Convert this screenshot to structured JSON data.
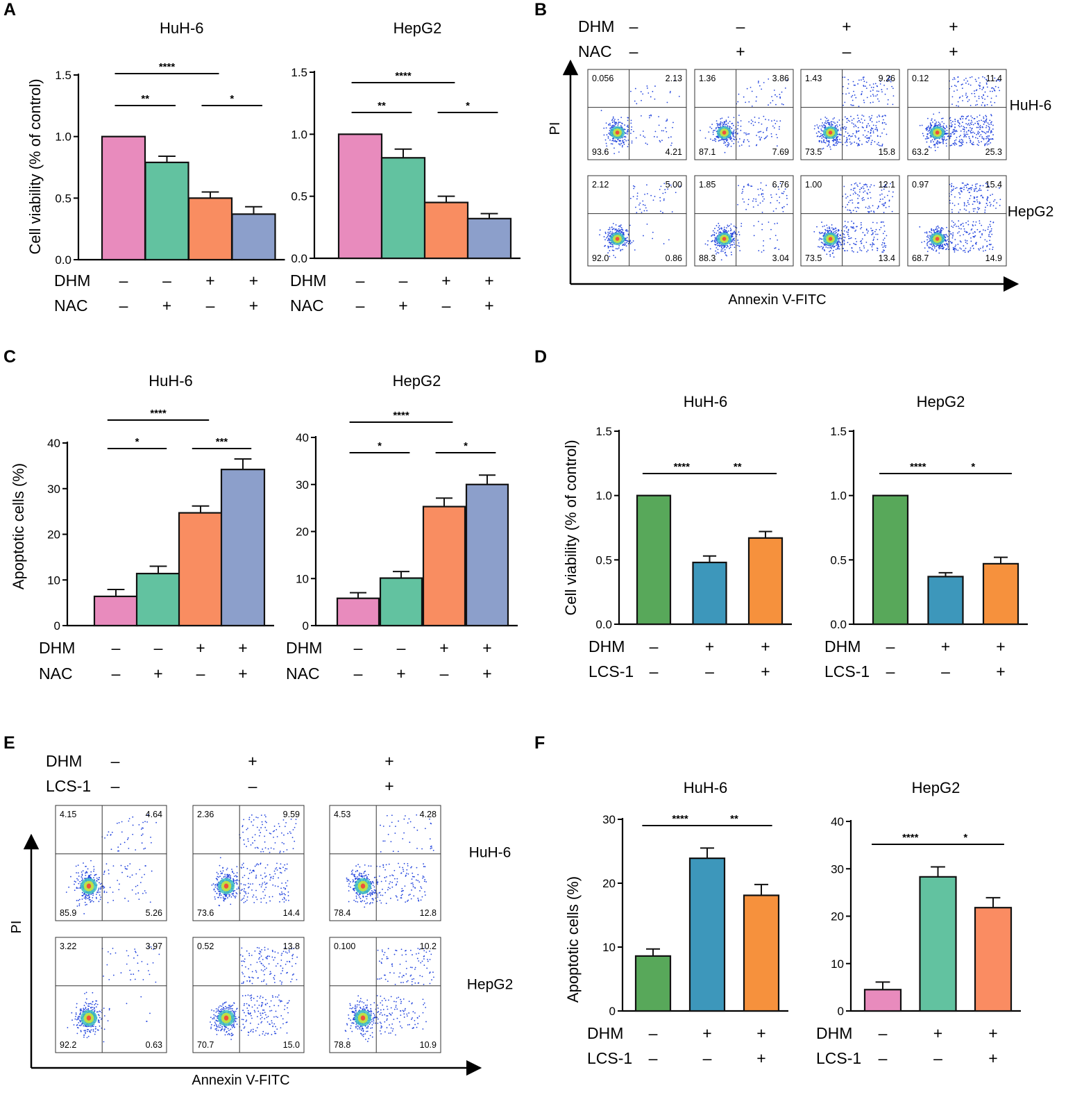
{
  "colors": {
    "pink": "#e88bbd",
    "teal": "#62c2a0",
    "orange": "#f98d61",
    "lavender": "#8c9fcb",
    "green": "#58a85a",
    "blue": "#3d97bb",
    "amber": "#f6913d",
    "salmon": "#fa8c62"
  },
  "panels": {
    "A": "A",
    "B": "B",
    "C": "C",
    "D": "D",
    "E": "E",
    "F": "F"
  },
  "chart_data": [
    {
      "id": "A-HuH6",
      "panel": "A",
      "type": "bar",
      "title": "HuH-6",
      "ylabel": "Cell viability (% of control)",
      "ylim": [
        0,
        1.5
      ],
      "yticks": [
        "0.0",
        "0.5",
        "1.0",
        "1.5"
      ],
      "ytick_values": [
        0,
        0.5,
        1.0,
        1.5
      ],
      "values": [
        1.0,
        0.79,
        0.5,
        0.37
      ],
      "errors": [
        0,
        0.05,
        0.05,
        0.06
      ],
      "colors": [
        "pink",
        "teal",
        "orange",
        "lavender"
      ],
      "conditions": [
        {
          "name": "DHM",
          "signs": [
            "–",
            "–",
            "+",
            "+"
          ]
        },
        {
          "name": "NAC",
          "signs": [
            "–",
            "+",
            "–",
            "+"
          ]
        }
      ],
      "significance": [
        {
          "from": 0,
          "to": 2,
          "label": "****"
        },
        {
          "from": 0,
          "to": 1,
          "label": "**"
        },
        {
          "from": 2,
          "to": 3,
          "label": "*"
        }
      ]
    },
    {
      "id": "A-HepG2",
      "panel": "A",
      "type": "bar",
      "title": "HepG2",
      "ylabel": "",
      "ylim": [
        0,
        1.5
      ],
      "yticks": [
        "0.0",
        "0.5",
        "1.0",
        "1.5"
      ],
      "ytick_values": [
        0,
        0.5,
        1.0,
        1.5
      ],
      "values": [
        1.0,
        0.81,
        0.45,
        0.32
      ],
      "errors": [
        0,
        0.07,
        0.05,
        0.04
      ],
      "colors": [
        "pink",
        "teal",
        "orange",
        "lavender"
      ],
      "conditions": [
        {
          "name": "DHM",
          "signs": [
            "–",
            "–",
            "+",
            "+"
          ]
        },
        {
          "name": "NAC",
          "signs": [
            "–",
            "+",
            "–",
            "+"
          ]
        }
      ],
      "significance": [
        {
          "from": 0,
          "to": 2,
          "label": "****"
        },
        {
          "from": 0,
          "to": 1,
          "label": "**"
        },
        {
          "from": 2,
          "to": 3,
          "label": "*"
        }
      ]
    },
    {
      "id": "C-HuH6",
      "panel": "C",
      "type": "bar",
      "title": "HuH-6",
      "ylabel": "Apoptotic cells (%)",
      "ylim": [
        0,
        40
      ],
      "yticks": [
        "0",
        "10",
        "20",
        "30",
        "40"
      ],
      "ytick_values": [
        0,
        10,
        20,
        30,
        40
      ],
      "values": [
        6.4,
        11.4,
        24.7,
        34.2
      ],
      "errors": [
        1.5,
        1.6,
        1.5,
        2.3
      ],
      "colors": [
        "pink",
        "teal",
        "orange",
        "lavender"
      ],
      "conditions": [
        {
          "name": "DHM",
          "signs": [
            "–",
            "–",
            "+",
            "+"
          ]
        },
        {
          "name": "NAC",
          "signs": [
            "–",
            "+",
            "–",
            "+"
          ]
        }
      ],
      "significance": [
        {
          "from": 0,
          "to": 2,
          "label": "****"
        },
        {
          "from": 0,
          "to": 1,
          "label": "*"
        },
        {
          "from": 2,
          "to": 3,
          "label": "***"
        }
      ]
    },
    {
      "id": "C-HepG2",
      "panel": "C",
      "type": "bar",
      "title": "HepG2",
      "ylabel": "",
      "ylim": [
        0,
        40
      ],
      "yticks": [
        "0",
        "10",
        "20",
        "30",
        "40"
      ],
      "ytick_values": [
        0,
        10,
        20,
        30,
        40
      ],
      "values": [
        5.8,
        10.1,
        25.3,
        30.0
      ],
      "errors": [
        1.2,
        1.4,
        1.8,
        2.0
      ],
      "colors": [
        "pink",
        "teal",
        "orange",
        "lavender"
      ],
      "conditions": [
        {
          "name": "DHM",
          "signs": [
            "–",
            "–",
            "+",
            "+"
          ]
        },
        {
          "name": "NAC",
          "signs": [
            "–",
            "+",
            "–",
            "+"
          ]
        }
      ],
      "significance": [
        {
          "from": 0,
          "to": 2,
          "label": "****"
        },
        {
          "from": 0,
          "to": 1,
          "label": "*"
        },
        {
          "from": 2,
          "to": 3,
          "label": "*"
        }
      ]
    },
    {
      "id": "D-HuH6",
      "panel": "D",
      "type": "bar",
      "title": "HuH-6",
      "ylabel": "Cell viability (% of control)",
      "ylim": [
        0,
        1.5
      ],
      "yticks": [
        "0.0",
        "0.5",
        "1.0",
        "1.5"
      ],
      "ytick_values": [
        0,
        0.5,
        1.0,
        1.5
      ],
      "values": [
        1.0,
        0.48,
        0.67
      ],
      "errors": [
        0,
        0.05,
        0.05
      ],
      "colors": [
        "green",
        "blue",
        "amber"
      ],
      "conditions": [
        {
          "name": "DHM",
          "signs": [
            "–",
            "+",
            "+"
          ]
        },
        {
          "name": "LCS-1",
          "signs": [
            "–",
            "–",
            "+"
          ]
        }
      ],
      "significance": [
        {
          "from": 0,
          "to": 1,
          "label": "****"
        },
        {
          "from": 1,
          "to": 2,
          "label": "**"
        }
      ]
    },
    {
      "id": "D-HepG2",
      "panel": "D",
      "type": "bar",
      "title": "HepG2",
      "ylabel": "",
      "ylim": [
        0,
        1.5
      ],
      "yticks": [
        "0.0",
        "0.5",
        "1.0",
        "1.5"
      ],
      "ytick_values": [
        0,
        0.5,
        1.0,
        1.5
      ],
      "values": [
        1.0,
        0.37,
        0.47
      ],
      "errors": [
        0,
        0.03,
        0.05
      ],
      "colors": [
        "green",
        "blue",
        "amber"
      ],
      "conditions": [
        {
          "name": "DHM",
          "signs": [
            "–",
            "+",
            "+"
          ]
        },
        {
          "name": "LCS-1",
          "signs": [
            "–",
            "–",
            "+"
          ]
        }
      ],
      "significance": [
        {
          "from": 0,
          "to": 1,
          "label": "****"
        },
        {
          "from": 1,
          "to": 2,
          "label": "*"
        }
      ]
    },
    {
      "id": "F-HuH6",
      "panel": "F",
      "type": "bar",
      "title": "HuH-6",
      "ylabel": "Apoptotic cells (%)",
      "ylim": [
        0,
        30
      ],
      "yticks": [
        "0",
        "10",
        "20",
        "30"
      ],
      "ytick_values": [
        0,
        10,
        20,
        30
      ],
      "values": [
        8.6,
        23.9,
        18.1
      ],
      "errors": [
        1.1,
        1.6,
        1.7
      ],
      "colors": [
        "green",
        "blue",
        "amber"
      ],
      "conditions": [
        {
          "name": "DHM",
          "signs": [
            "–",
            "+",
            "+"
          ]
        },
        {
          "name": "LCS-1",
          "signs": [
            "–",
            "–",
            "+"
          ]
        }
      ],
      "significance": [
        {
          "from": 0,
          "to": 1,
          "label": "****"
        },
        {
          "from": 1,
          "to": 2,
          "label": "**"
        }
      ]
    },
    {
      "id": "F-HepG2",
      "panel": "F",
      "type": "bar",
      "title": "HepG2",
      "ylabel": "",
      "ylim": [
        0,
        40
      ],
      "yticks": [
        "0",
        "10",
        "20",
        "30",
        "40"
      ],
      "ytick_values": [
        0,
        10,
        20,
        30,
        40
      ],
      "values": [
        4.5,
        28.3,
        21.8
      ],
      "errors": [
        1.6,
        2.1,
        2.1
      ],
      "colors": [
        "pink",
        "teal",
        "salmon"
      ],
      "conditions": [
        {
          "name": "DHM",
          "signs": [
            "–",
            "+",
            "+"
          ]
        },
        {
          "name": "LCS-1",
          "signs": [
            "–",
            "–",
            "+"
          ]
        }
      ],
      "significance": [
        {
          "from": 0,
          "to": 1,
          "label": "****"
        },
        {
          "from": 1,
          "to": 2,
          "label": "*"
        }
      ]
    },
    {
      "id": "B-flow",
      "panel": "B",
      "type": "scatter",
      "xlabel": "Annexin V-FITC",
      "ylabel": "PI",
      "conditions": [
        {
          "name": "DHM",
          "signs": [
            "–",
            "–",
            "+",
            "+"
          ]
        },
        {
          "name": "NAC",
          "signs": [
            "–",
            "+",
            "–",
            "+"
          ]
        }
      ],
      "rows": [
        {
          "cell_line": "HuH-6",
          "plots": [
            {
              "ul": "0.056",
              "ur": "2.13",
              "ll": "93.6",
              "lr": "4.21"
            },
            {
              "ul": "1.36",
              "ur": "3.86",
              "ll": "87.1",
              "lr": "7.69"
            },
            {
              "ul": "1.43",
              "ur": "9.26",
              "ll": "73.5",
              "lr": "15.8"
            },
            {
              "ul": "0.12",
              "ur": "11.4",
              "ll": "63.2",
              "lr": "25.3"
            }
          ]
        },
        {
          "cell_line": "HepG2",
          "plots": [
            {
              "ul": "2.12",
              "ur": "5.00",
              "ll": "92.0",
              "lr": "0.86"
            },
            {
              "ul": "1.85",
              "ur": "6.76",
              "ll": "88.3",
              "lr": "3.04"
            },
            {
              "ul": "1.00",
              "ur": "12.1",
              "ll": "73.5",
              "lr": "13.4"
            },
            {
              "ul": "0.97",
              "ur": "15.4",
              "ll": "68.7",
              "lr": "14.9"
            }
          ]
        }
      ]
    },
    {
      "id": "E-flow",
      "panel": "E",
      "type": "scatter",
      "xlabel": "Annexin V-FITC",
      "ylabel": "PI",
      "conditions": [
        {
          "name": "DHM",
          "signs": [
            "–",
            "+",
            "+"
          ]
        },
        {
          "name": "LCS-1",
          "signs": [
            "–",
            "–",
            "+"
          ]
        }
      ],
      "rows": [
        {
          "cell_line": "HuH-6",
          "plots": [
            {
              "ul": "4.15",
              "ur": "4.64",
              "ll": "85.9",
              "lr": "5.26"
            },
            {
              "ul": "2.36",
              "ur": "9.59",
              "ll": "73.6",
              "lr": "14.4"
            },
            {
              "ul": "4.53",
              "ur": "4.28",
              "ll": "78.4",
              "lr": "12.8"
            }
          ]
        },
        {
          "cell_line": "HepG2",
          "plots": [
            {
              "ul": "3.22",
              "ur": "3.97",
              "ll": "92.2",
              "lr": "0.63"
            },
            {
              "ul": "0.52",
              "ur": "13.8",
              "ll": "70.7",
              "lr": "15.0"
            },
            {
              "ul": "0.100",
              "ur": "10.2",
              "ll": "78.8",
              "lr": "10.9"
            }
          ]
        }
      ]
    }
  ]
}
